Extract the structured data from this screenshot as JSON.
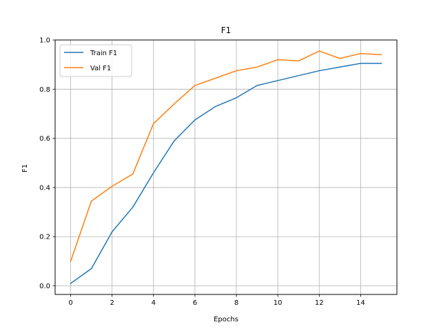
{
  "chart_data": {
    "type": "line",
    "title": "F1",
    "xlabel": "Epochs",
    "ylabel": "F1",
    "xlim": [
      -0.75,
      15.75
    ],
    "ylim": [
      -0.035,
      1.0
    ],
    "xticks": [
      0,
      2,
      4,
      6,
      8,
      10,
      12,
      14
    ],
    "xtick_labels": [
      "0",
      "2",
      "4",
      "6",
      "8",
      "10",
      "12",
      "14"
    ],
    "yticks": [
      0.0,
      0.2,
      0.4,
      0.6,
      0.8,
      1.0
    ],
    "ytick_labels": [
      "0.0",
      "0.2",
      "0.4",
      "0.6",
      "0.8",
      "1.0"
    ],
    "grid": true,
    "legend_position": "top-left",
    "x": [
      0,
      1,
      2,
      3,
      4,
      5,
      6,
      7,
      8,
      9,
      10,
      11,
      12,
      13,
      14,
      15
    ],
    "series": [
      {
        "name": "Train F1",
        "color": "#1f77b4",
        "values": [
          0.01,
          0.07,
          0.22,
          0.32,
          0.46,
          0.59,
          0.675,
          0.73,
          0.765,
          0.815,
          0.835,
          0.855,
          0.875,
          0.89,
          0.905,
          0.905
        ]
      },
      {
        "name": "Val F1",
        "color": "#ff7f0e",
        "values": [
          0.1,
          0.345,
          0.405,
          0.455,
          0.66,
          0.74,
          0.815,
          0.845,
          0.875,
          0.89,
          0.92,
          0.915,
          0.955,
          0.925,
          0.945,
          0.94
        ]
      }
    ]
  }
}
